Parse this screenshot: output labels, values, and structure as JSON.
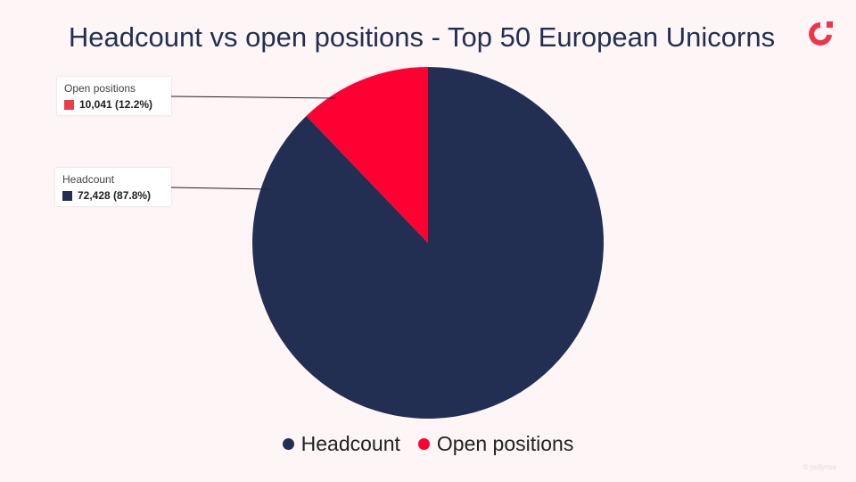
{
  "page": {
    "title": "Headcount vs open positions - Top 50 European Unicorns",
    "watermark": "© pollyrise"
  },
  "colors": {
    "background": "#fdf5f6",
    "headcount": "#232f52",
    "open_positions": "#ff0033",
    "brand": "#f0354a"
  },
  "logo": {
    "icon": "brand-logo-icon"
  },
  "chart_data": {
    "type": "pie",
    "title": "Headcount vs open positions - Top 50 European Unicorns",
    "series": [
      {
        "name": "Headcount",
        "value": 72428,
        "value_label": "72,428 (87.8%)",
        "percent": 87.8,
        "color": "#232f52"
      },
      {
        "name": "Open positions",
        "value": 10041,
        "value_label": "10,041 (12.2%)",
        "percent": 12.2,
        "color": "#ff0033"
      }
    ],
    "legend_position": "bottom"
  }
}
